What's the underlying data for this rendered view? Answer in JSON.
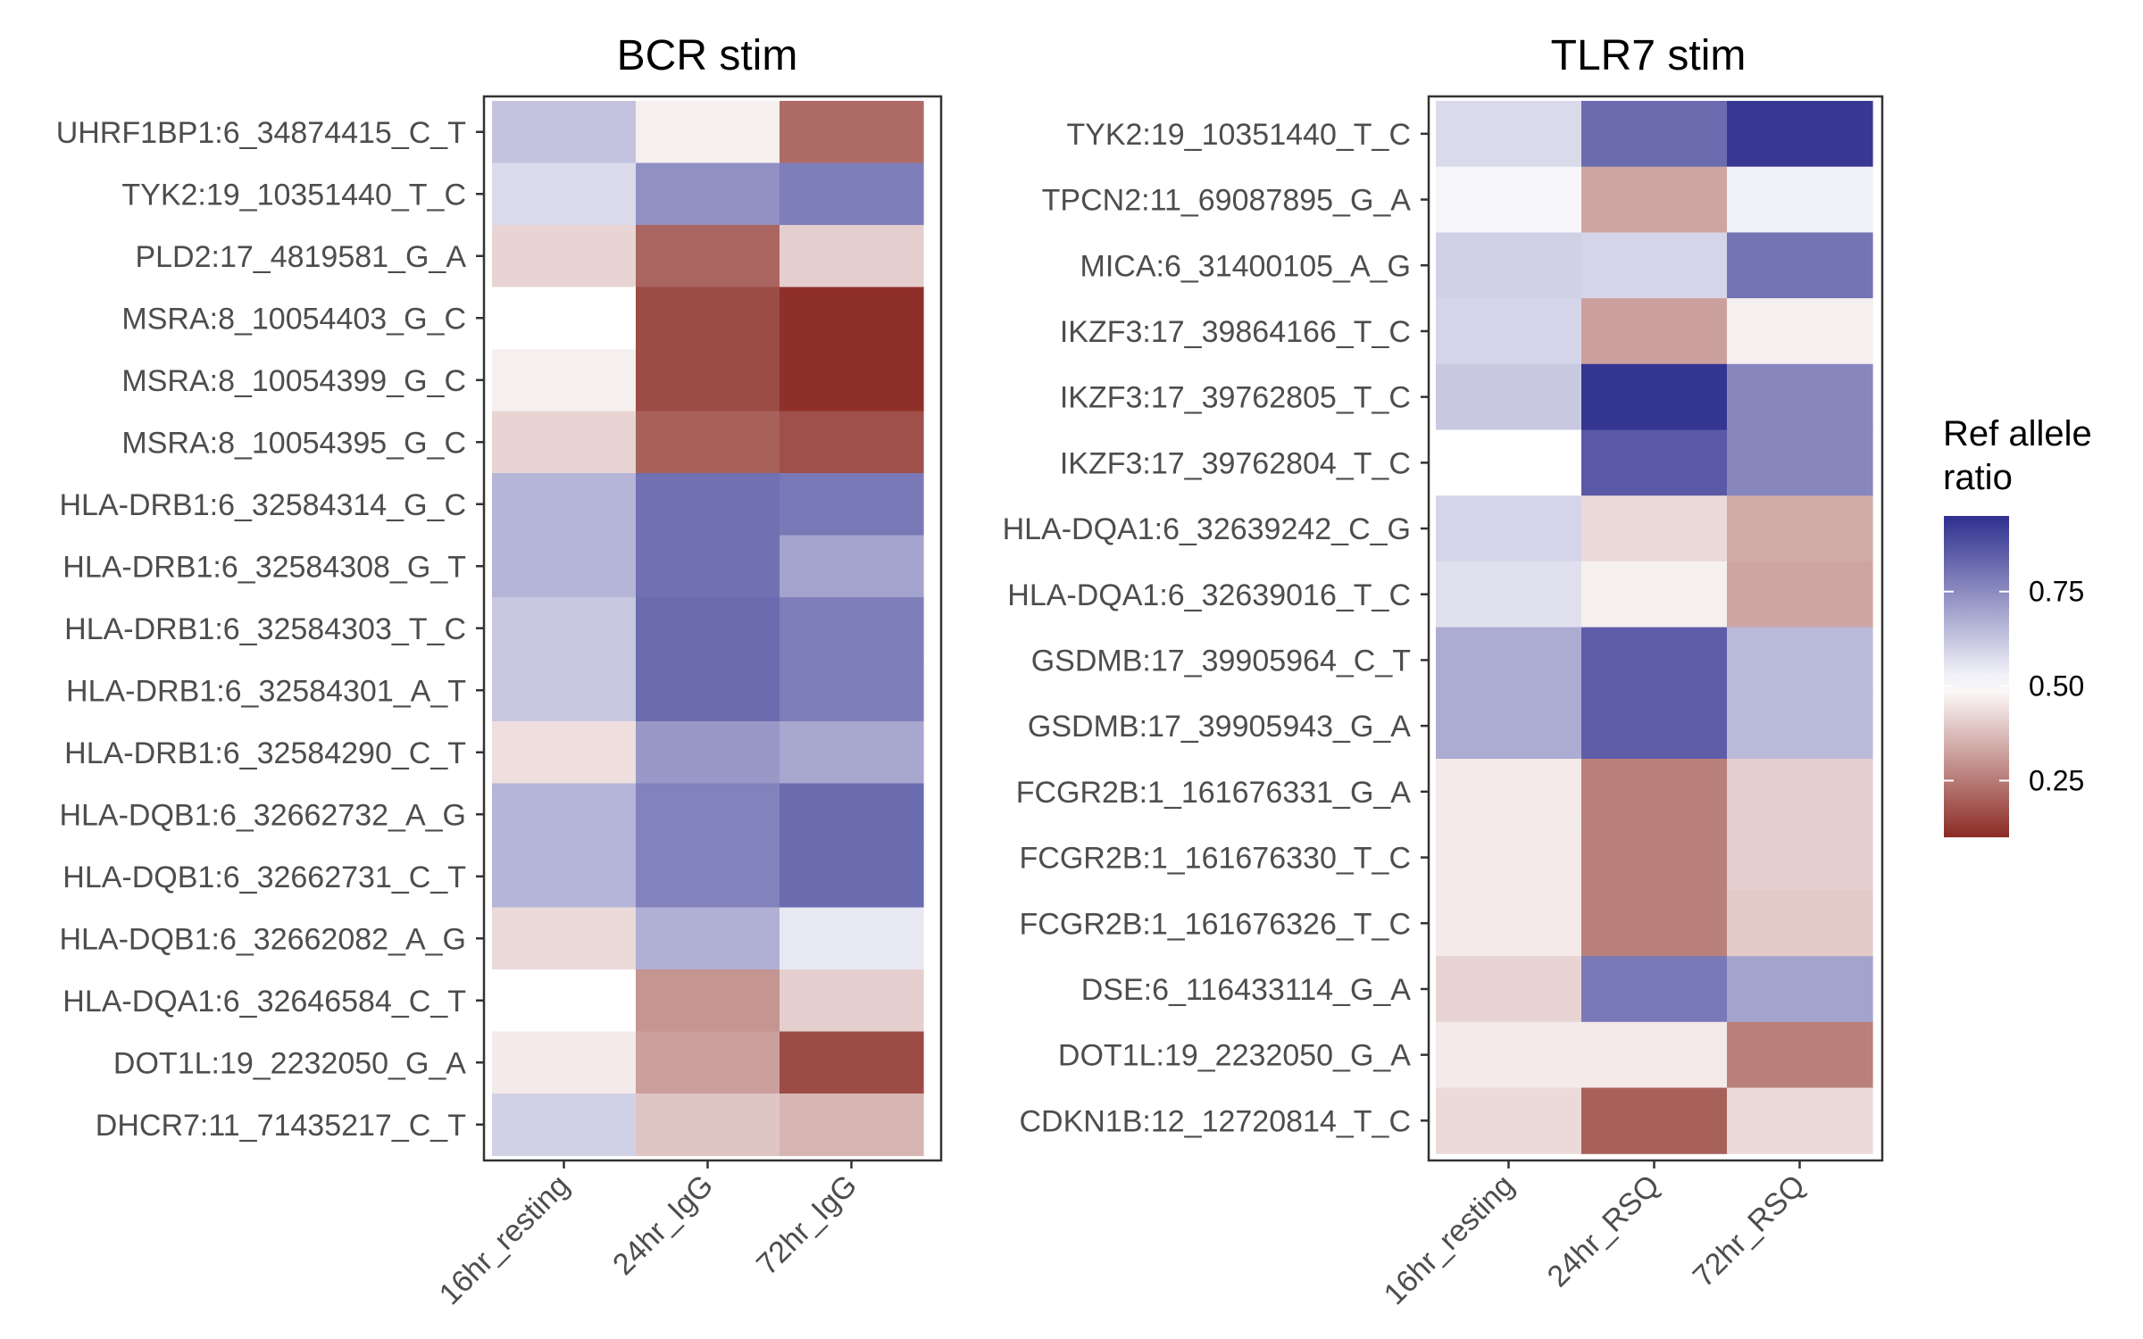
{
  "chart_data": {
    "type": "heatmap",
    "legend": {
      "title_lines": [
        "Ref allele",
        "ratio"
      ],
      "placement": "right",
      "range": [
        0.1,
        0.95
      ],
      "ticks": [
        0.25,
        0.5,
        0.75
      ],
      "tick_labels": [
        "0.25",
        "0.50",
        "0.75"
      ],
      "colors": {
        "low": "#8b2b24",
        "mid": "#ffffff",
        "high": "#2f2f8f"
      }
    },
    "panels": [
      {
        "title": "BCR stim",
        "columns": [
          "16hr_resting",
          "24hr_IgG",
          "72hr_IgG"
        ],
        "rows": [
          {
            "label": "UHRF1BP1:6_34874415_C_T",
            "values": [
              0.63,
              0.47,
              0.22
            ]
          },
          {
            "label": "TYK2:19_10351440_T_C",
            "values": [
              0.58,
              0.74,
              0.78
            ]
          },
          {
            "label": "PLD2:17_4819581_G_A",
            "values": [
              0.42,
              0.21,
              0.41
            ]
          },
          {
            "label": "MSRA:8_10054403_G_C",
            "values": [
              0.5,
              0.16,
              0.11
            ]
          },
          {
            "label": "MSRA:8_10054399_G_C",
            "values": [
              0.47,
              0.16,
              0.11
            ]
          },
          {
            "label": "MSRA:8_10054395_G_C",
            "values": [
              0.42,
              0.2,
              0.17
            ]
          },
          {
            "label": "HLA-DRB1:6_32584314_G_C",
            "values": [
              0.66,
              0.81,
              0.79
            ]
          },
          {
            "label": "HLA-DRB1:6_32584308_G_T",
            "values": [
              0.66,
              0.81,
              0.7
            ]
          },
          {
            "label": "HLA-DRB1:6_32584303_T_C",
            "values": [
              0.62,
              0.82,
              0.78
            ]
          },
          {
            "label": "HLA-DRB1:6_32584301_A_T",
            "values": [
              0.62,
              0.82,
              0.78
            ]
          },
          {
            "label": "HLA-DRB1:6_32584290_C_T",
            "values": [
              0.44,
              0.72,
              0.69
            ]
          },
          {
            "label": "HLA-DQB1:6_32662732_A_G",
            "values": [
              0.66,
              0.77,
              0.82
            ]
          },
          {
            "label": "HLA-DQB1:6_32662731_C_T",
            "values": [
              0.66,
              0.77,
              0.82
            ]
          },
          {
            "label": "HLA-DQB1:6_32662082_A_G",
            "values": [
              0.43,
              0.67,
              0.55
            ]
          },
          {
            "label": "HLA-DQA1:6_32646584_C_T",
            "values": [
              0.5,
              0.3,
              0.41
            ]
          },
          {
            "label": "DOT1L:19_2232050_G_A",
            "values": [
              0.46,
              0.32,
              0.16
            ]
          },
          {
            "label": "DHCR7:11_71435217_C_T",
            "values": [
              0.6,
              0.39,
              0.36
            ]
          }
        ]
      },
      {
        "title": "TLR7 stim",
        "columns": [
          "16hr_resting",
          "24hr_RSQ",
          "72hr_RSQ"
        ],
        "rows": [
          {
            "label": "TYK2:19_10351440_T_C",
            "values": [
              0.58,
              0.82,
              0.93
            ]
          },
          {
            "label": "TPCN2:11_69087895_G_A",
            "values": [
              0.52,
              0.33,
              0.53
            ]
          },
          {
            "label": "MICA:6_31400105_A_G",
            "values": [
              0.6,
              0.59,
              0.8
            ]
          },
          {
            "label": "IKZF3:17_39864166_T_C",
            "values": [
              0.59,
              0.32,
              0.47
            ]
          },
          {
            "label": "IKZF3:17_39762805_T_C",
            "values": [
              0.62,
              0.94,
              0.76
            ]
          },
          {
            "label": "IKZF3:17_39762804_T_C",
            "values": [
              0.5,
              0.86,
              0.76
            ]
          },
          {
            "label": "HLA-DQA1:6_32639242_C_G",
            "values": [
              0.59,
              0.43,
              0.34
            ]
          },
          {
            "label": "HLA-DQA1:6_32639016_T_C",
            "values": [
              0.57,
              0.47,
              0.33
            ]
          },
          {
            "label": "GSDMB:17_39905964_C_T",
            "values": [
              0.68,
              0.85,
              0.65
            ]
          },
          {
            "label": "GSDMB:17_39905943_G_A",
            "values": [
              0.68,
              0.85,
              0.65
            ]
          },
          {
            "label": "FCGR2B:1_161676331_G_A",
            "values": [
              0.46,
              0.26,
              0.41
            ]
          },
          {
            "label": "FCGR2B:1_161676330_T_C",
            "values": [
              0.46,
              0.26,
              0.41
            ]
          },
          {
            "label": "FCGR2B:1_161676326_T_C",
            "values": [
              0.46,
              0.26,
              0.4
            ]
          },
          {
            "label": "DSE:6_116433114_G_A",
            "values": [
              0.42,
              0.79,
              0.7
            ]
          },
          {
            "label": "DOT1L:19_2232050_G_A",
            "values": [
              0.46,
              0.46,
              0.26
            ]
          },
          {
            "label": "CDKN1B:12_12720814_T_C",
            "values": [
              0.43,
              0.2,
              0.43
            ]
          }
        ]
      }
    ]
  }
}
